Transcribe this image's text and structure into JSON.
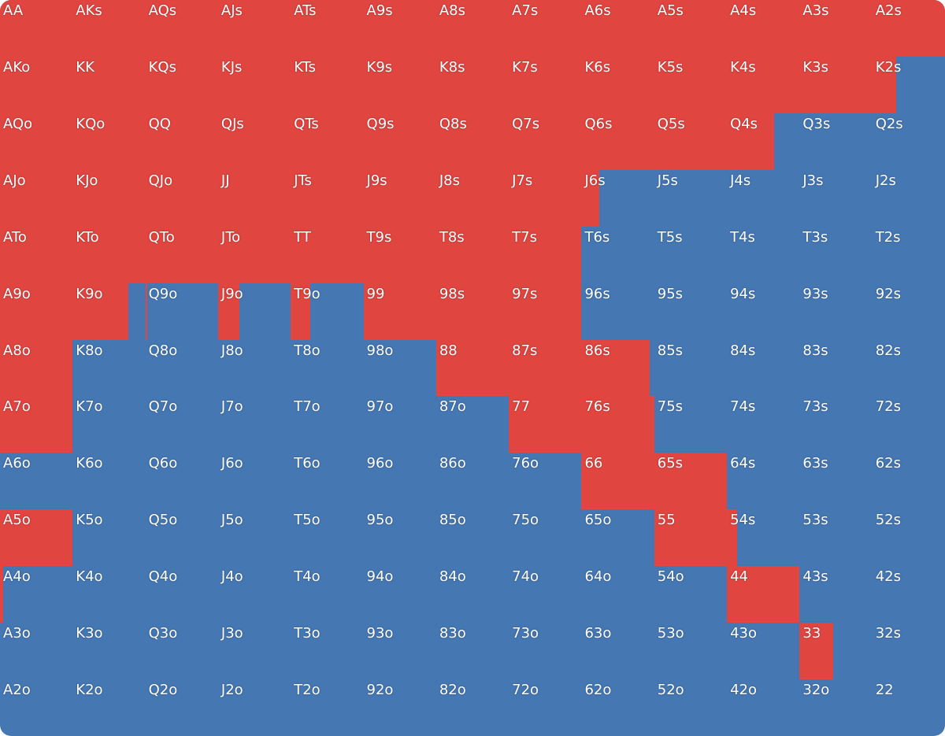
{
  "colors": {
    "raise": "#e04540",
    "fold": "#4577b3"
  },
  "labels": [
    [
      "AA",
      "AKs",
      "AQs",
      "AJs",
      "ATs",
      "A9s",
      "A8s",
      "A7s",
      "A6s",
      "A5s",
      "A4s",
      "A3s",
      "A2s"
    ],
    [
      "AKo",
      "KK",
      "KQs",
      "KJs",
      "KTs",
      "K9s",
      "K8s",
      "K7s",
      "K6s",
      "K5s",
      "K4s",
      "K3s",
      "K2s"
    ],
    [
      "AQo",
      "KQo",
      "QQ",
      "QJs",
      "QTs",
      "Q9s",
      "Q8s",
      "Q7s",
      "Q6s",
      "Q5s",
      "Q4s",
      "Q3s",
      "Q2s"
    ],
    [
      "AJo",
      "KJo",
      "QJo",
      "JJ",
      "JTs",
      "J9s",
      "J8s",
      "J7s",
      "J6s",
      "J5s",
      "J4s",
      "J3s",
      "J2s"
    ],
    [
      "ATo",
      "KTo",
      "QTo",
      "JTo",
      "TT",
      "T9s",
      "T8s",
      "T7s",
      "T6s",
      "T5s",
      "T4s",
      "T3s",
      "T2s"
    ],
    [
      "A9o",
      "K9o",
      "Q9o",
      "J9o",
      "T9o",
      "99",
      "98s",
      "97s",
      "96s",
      "95s",
      "94s",
      "93s",
      "92s"
    ],
    [
      "A8o",
      "K8o",
      "Q8o",
      "J8o",
      "T8o",
      "98o",
      "88",
      "87s",
      "86s",
      "85s",
      "84s",
      "83s",
      "82s"
    ],
    [
      "A7o",
      "K7o",
      "Q7o",
      "J7o",
      "T7o",
      "97o",
      "87o",
      "77",
      "76s",
      "75s",
      "74s",
      "73s",
      "72s"
    ],
    [
      "A6o",
      "K6o",
      "Q6o",
      "J6o",
      "T6o",
      "96o",
      "86o",
      "76o",
      "66",
      "65s",
      "64s",
      "63s",
      "62s"
    ],
    [
      "A5o",
      "K5o",
      "Q5o",
      "J5o",
      "T5o",
      "95o",
      "85o",
      "75o",
      "65o",
      "55",
      "54s",
      "53s",
      "52s"
    ],
    [
      "A4o",
      "K4o",
      "Q4o",
      "J4o",
      "T4o",
      "94o",
      "84o",
      "74o",
      "64o",
      "54o",
      "44",
      "43s",
      "42s"
    ],
    [
      "A3o",
      "K3o",
      "Q3o",
      "J3o",
      "T3o",
      "93o",
      "83o",
      "73o",
      "63o",
      "53o",
      "43o",
      "33",
      "32s"
    ],
    [
      "A2o",
      "K2o",
      "Q2o",
      "J2o",
      "T2o",
      "92o",
      "82o",
      "72o",
      "62o",
      "52o",
      "42o",
      "32o",
      "22"
    ]
  ],
  "raise": [
    [
      100,
      100,
      100,
      100,
      100,
      100,
      100,
      100,
      100,
      100,
      100,
      100,
      100
    ],
    [
      100,
      100,
      100,
      100,
      100,
      100,
      100,
      100,
      100,
      100,
      100,
      100,
      33
    ],
    [
      100,
      100,
      100,
      100,
      100,
      100,
      100,
      100,
      100,
      100,
      65,
      0,
      0
    ],
    [
      100,
      100,
      100,
      100,
      100,
      100,
      100,
      100,
      24,
      0,
      0,
      0,
      0
    ],
    [
      100,
      100,
      100,
      100,
      100,
      100,
      100,
      100,
      0,
      0,
      0,
      0,
      0
    ],
    [
      100,
      77,
      3,
      29,
      27,
      100,
      100,
      100,
      0,
      0,
      0,
      0,
      0
    ],
    [
      100,
      0,
      0,
      0,
      0,
      0,
      100,
      100,
      94,
      0,
      0,
      0,
      0
    ],
    [
      100,
      0,
      0,
      0,
      0,
      0,
      0,
      100,
      100,
      0,
      0,
      0,
      0
    ],
    [
      0,
      0,
      0,
      0,
      0,
      0,
      0,
      0,
      100,
      100,
      0,
      0,
      0
    ],
    [
      100,
      0,
      0,
      0,
      0,
      0,
      0,
      0,
      0,
      100,
      14,
      0,
      0
    ],
    [
      4,
      0,
      0,
      0,
      0,
      0,
      0,
      0,
      0,
      0,
      100,
      0,
      0
    ],
    [
      0,
      0,
      0,
      0,
      0,
      0,
      0,
      0,
      0,
      0,
      0,
      46,
      0
    ],
    [
      0,
      0,
      0,
      0,
      0,
      0,
      0,
      0,
      0,
      0,
      0,
      0,
      0
    ]
  ]
}
